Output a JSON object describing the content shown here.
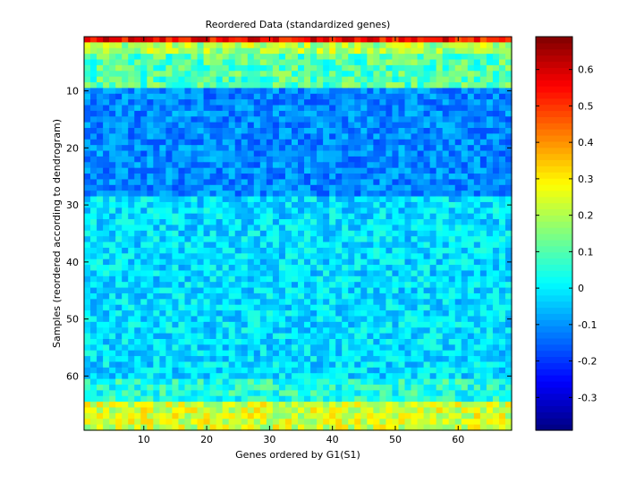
{
  "chart_data": {
    "type": "heatmap",
    "title": "Reordered Data (standardized genes)",
    "xlabel": "Genes ordered by G1(S1)",
    "ylabel": "Samples (reordered according to dendrogram)",
    "n_cols": 68,
    "n_rows": 69,
    "xlim": [
      0.5,
      68.5
    ],
    "ylim": [
      0.5,
      69.5
    ],
    "y_direction": "reversed",
    "xticks": [
      10,
      20,
      30,
      40,
      50,
      60
    ],
    "yticks": [
      10,
      20,
      30,
      40,
      50,
      60
    ],
    "colormap": "jet",
    "colorbar": {
      "clim": [
        -0.39,
        0.69
      ],
      "ticks": [
        -0.3,
        -0.2,
        -0.1,
        0,
        0.1,
        0.2,
        0.3,
        0.4,
        0.5,
        0.6
      ]
    },
    "row_profile": [
      {
        "rows": [
          1,
          1
        ],
        "mean": 0.55,
        "spread": 0.1
      },
      {
        "rows": [
          2,
          3
        ],
        "mean": 0.2,
        "spread": 0.1
      },
      {
        "rows": [
          4,
          9
        ],
        "mean": 0.1,
        "spread": 0.1
      },
      {
        "rows": [
          10,
          28
        ],
        "mean": -0.11,
        "spread": 0.07
      },
      {
        "rows": [
          29,
          60
        ],
        "mean": -0.02,
        "spread": 0.08
      },
      {
        "rows": [
          61,
          64
        ],
        "mean": 0.05,
        "spread": 0.09
      },
      {
        "rows": [
          65,
          69
        ],
        "mean": 0.24,
        "spread": 0.1
      }
    ],
    "grid": false,
    "legend": "none"
  }
}
